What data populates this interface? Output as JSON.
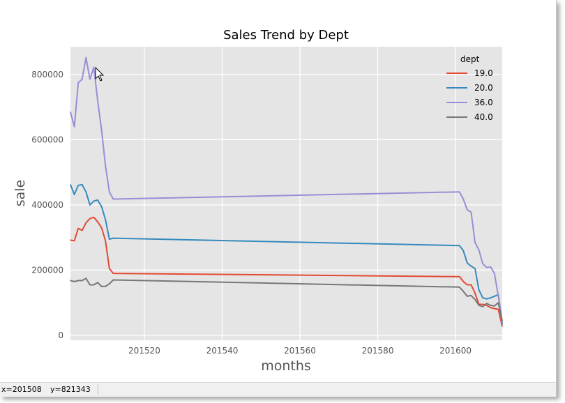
{
  "chart_data": {
    "type": "line",
    "title": "Sales Trend by Dept",
    "xlabel": "months",
    "ylabel": "sale",
    "xlim": [
      201501,
      201612
    ],
    "ylim": [
      -15000,
      885000
    ],
    "x_ticks": [
      201520,
      201540,
      201560,
      201580,
      201600
    ],
    "y_ticks": [
      0,
      200000,
      400000,
      600000,
      800000
    ],
    "x_tick_labels": [
      "201520",
      "201540",
      "201560",
      "201580",
      "201600"
    ],
    "y_tick_labels": [
      "0",
      "200000",
      "400000",
      "600000",
      "800000"
    ],
    "grid": true,
    "legend_title": "dept",
    "legend_position": "top-right",
    "x": [
      201501,
      201502,
      201503,
      201504,
      201505,
      201506,
      201507,
      201508,
      201509,
      201510,
      201511,
      201512,
      201601,
      201602,
      201603,
      201604,
      201605,
      201606,
      201607,
      201608,
      201609,
      201610,
      201611,
      201612
    ],
    "series": [
      {
        "name": "19.0",
        "color": "#e24a33",
        "values": [
          292000,
          290000,
          328000,
          322000,
          345000,
          358000,
          362000,
          348000,
          330000,
          290000,
          205000,
          190000,
          180000,
          165000,
          155000,
          155000,
          130000,
          95000,
          95000,
          92000,
          85000,
          82000,
          80000,
          28000
        ]
      },
      {
        "name": "20.0",
        "color": "#348abd",
        "values": [
          462000,
          432000,
          460000,
          462000,
          440000,
          400000,
          412000,
          415000,
          395000,
          355000,
          295000,
          298000,
          275000,
          260000,
          222000,
          212000,
          205000,
          140000,
          115000,
          112000,
          115000,
          120000,
          125000,
          35000
        ]
      },
      {
        "name": "36.0",
        "color": "#988ed5",
        "values": [
          685000,
          640000,
          775000,
          785000,
          852000,
          785000,
          822000,
          720000,
          630000,
          520000,
          440000,
          418000,
          440000,
          418000,
          385000,
          378000,
          285000,
          262000,
          220000,
          208000,
          210000,
          190000,
          120000,
          40000
        ]
      },
      {
        "name": "40.0",
        "color": "#777777",
        "values": [
          168000,
          165000,
          168000,
          168000,
          175000,
          155000,
          155000,
          162000,
          150000,
          150000,
          158000,
          170000,
          148000,
          135000,
          120000,
          122000,
          110000,
          92000,
          88000,
          98000,
          92000,
          90000,
          100000,
          45000
        ]
      }
    ]
  },
  "status": {
    "x_readout": "x=201508",
    "y_readout": "y=821343"
  }
}
